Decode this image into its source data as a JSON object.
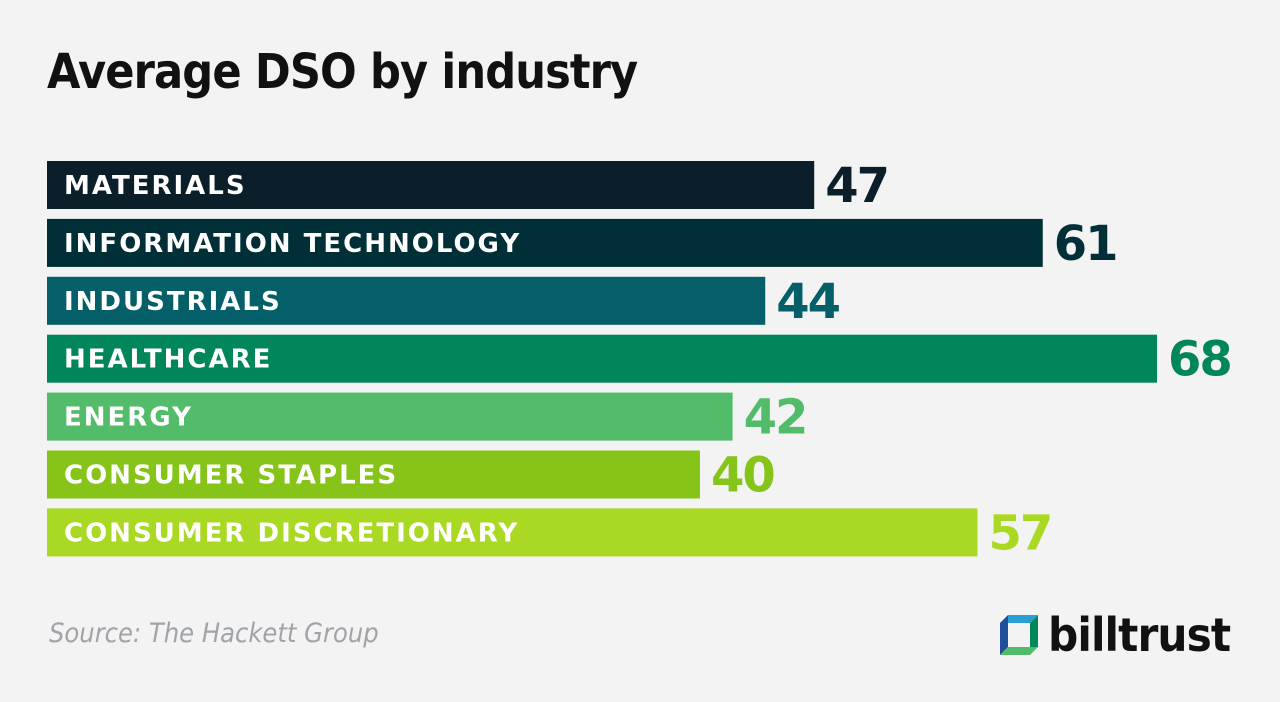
{
  "chart_data": {
    "type": "bar",
    "orientation": "horizontal",
    "title": "Average DSO by industry",
    "categories": [
      "MATERIALS",
      "INFORMATION TECHNOLOGY",
      "INDUSTRIALS",
      "HEALTHCARE",
      "ENERGY",
      "CONSUMER STAPLES",
      "CONSUMER DISCRETIONARY"
    ],
    "values": [
      47,
      61,
      44,
      68,
      42,
      40,
      57
    ],
    "colors": [
      "#0b1f2b",
      "#002f38",
      "#045f68",
      "#00865a",
      "#52bc6a",
      "#86c41a",
      "#a9d923"
    ],
    "xlim": [
      0,
      68
    ],
    "grid": false,
    "legend": "none",
    "data_labels": true
  },
  "source": "Source: The Hackett Group",
  "logo": {
    "text": "billtrust"
  }
}
